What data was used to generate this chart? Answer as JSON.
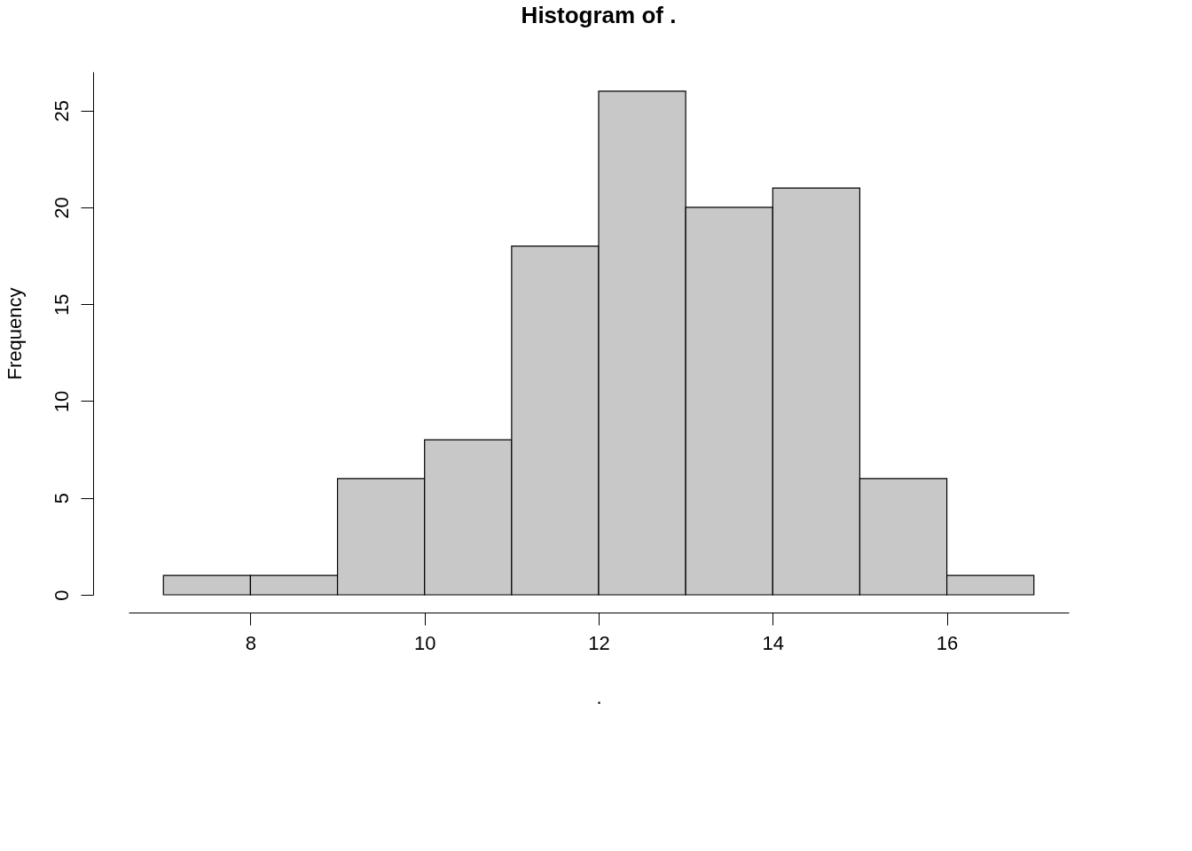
{
  "chart_data": {
    "type": "histogram",
    "title": "Histogram of .",
    "xlabel": ".",
    "ylabel": "Frequency",
    "bins": [
      7,
      8,
      9,
      10,
      11,
      12,
      13,
      14,
      15,
      16,
      17
    ],
    "values": [
      1,
      1,
      6,
      8,
      18,
      26,
      20,
      21,
      6,
      1
    ],
    "color": "#c8c8c8",
    "xlim": [
      6.6,
      17.4
    ],
    "ylim": [
      0,
      27
    ],
    "xticks": [
      8,
      10,
      12,
      14,
      16
    ],
    "yticks": [
      0,
      5,
      10,
      15,
      20,
      25
    ],
    "grid": false
  }
}
